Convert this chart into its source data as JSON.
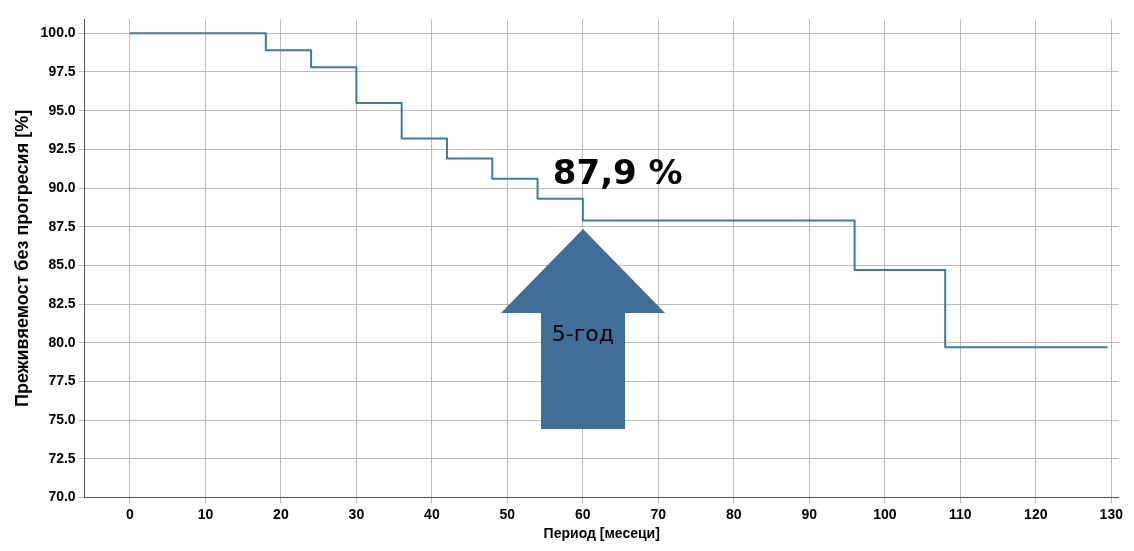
{
  "chart_data": {
    "type": "step",
    "xlabel": "Период [месеци]",
    "ylabel": "Преживяемост без прогресия [%]",
    "x": [
      0,
      18,
      24,
      30,
      36,
      42,
      48,
      54,
      60,
      96,
      108,
      129.5
    ],
    "series": [
      {
        "color": "#3a7ca5",
        "values": [
          100,
          98.9,
          97.8,
          95.5,
          93.2,
          91.9,
          90.6,
          89.3,
          87.9,
          84.7,
          79.7,
          79.7
        ]
      }
    ],
    "xlim": [
      -6,
      131
    ],
    "xticks": [
      0,
      10,
      20,
      30,
      40,
      50,
      60,
      70,
      80,
      90,
      100,
      110,
      120,
      130
    ],
    "ylim": [
      70,
      100.9
    ],
    "yticks": [
      {
        "value": 70,
        "label": "70.0"
      },
      {
        "value": 72.5,
        "label": "72.5"
      },
      {
        "value": 75,
        "label": "75.0"
      },
      {
        "value": 77.5,
        "label": "77.5"
      },
      {
        "value": 80,
        "label": "80.0"
      },
      {
        "value": 82.5,
        "label": "82.5"
      },
      {
        "value": 85,
        "label": "85.0"
      },
      {
        "value": 87.5,
        "label": "87.5"
      },
      {
        "value": 90,
        "label": "90.0"
      },
      {
        "value": 92.5,
        "label": "92.5"
      },
      {
        "value": 95,
        "label": "95.0"
      },
      {
        "value": 97.5,
        "label": "97.5"
      },
      {
        "value": 100,
        "label": "100.0"
      }
    ],
    "grid": true,
    "marker": "none",
    "line_style": "solid",
    "annotations": [
      {
        "text": "87,9 %",
        "x": 60,
        "y": 87.9
      },
      "5-год"
    ]
  }
}
